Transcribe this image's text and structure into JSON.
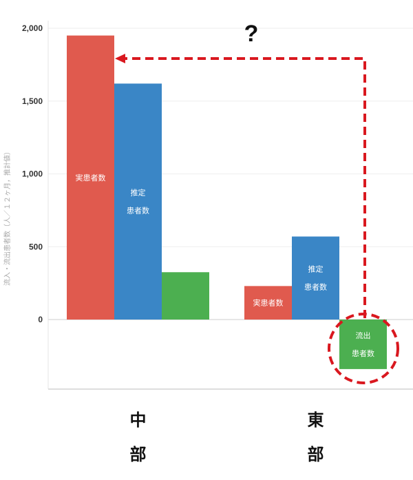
{
  "chart_data": {
    "type": "bar",
    "categories": [
      "中部",
      "東部"
    ],
    "category_chars": [
      [
        "中",
        "部"
      ],
      [
        "東",
        "部"
      ]
    ],
    "series": [
      {
        "name": "実患者数",
        "label_lines": [
          "実患者数"
        ],
        "values": [
          1950,
          230
        ],
        "color": "#e05a4e"
      },
      {
        "name": "推定患者数",
        "label_lines": [
          "推定",
          "患者数"
        ],
        "values": [
          1620,
          570
        ],
        "color": "#3a86c6"
      },
      {
        "name": "流出患者数",
        "label_lines": [
          "流出",
          "患者数"
        ],
        "values": [
          325,
          -340
        ],
        "color": "#4caf50"
      }
    ],
    "series_labels_shown": [
      [
        true,
        true,
        false
      ],
      [
        true,
        true,
        true
      ]
    ],
    "ylabel": "流入・流出患者数（人／１２ヶ月，推計値）",
    "ylim": [
      -470,
      2000
    ],
    "yticks": [
      0,
      500,
      1000,
      1500,
      2000
    ],
    "ytick_labels": [
      "0",
      "500",
      "1,000",
      "1,500",
      "2,000"
    ],
    "grid": true,
    "annotations": {
      "question_mark": "?",
      "arrow": "dashed red arrow from 東部 outflow bar to 中部 actual patients bar",
      "circle": "dashed red circle around 東部 outflow bar",
      "annotation_color": "#d9181f"
    }
  }
}
